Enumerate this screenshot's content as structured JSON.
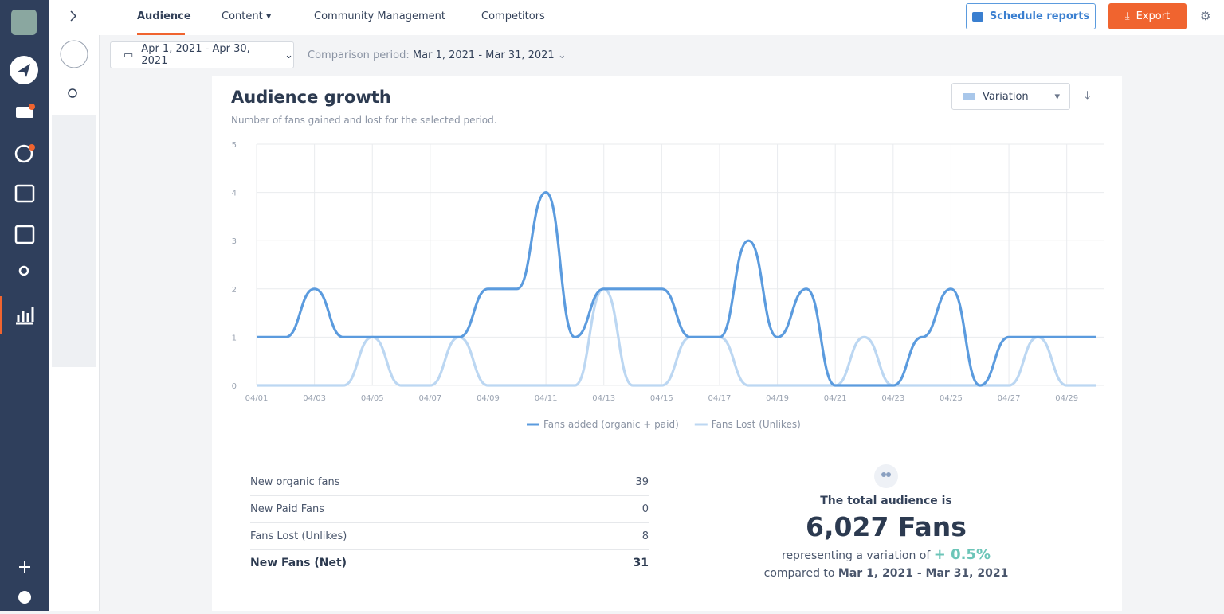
{
  "app": {
    "tabs": [
      "Audience",
      "Content",
      "Community Management",
      "Competitors"
    ],
    "schedule": "Schedule reports",
    "export": "Export"
  },
  "filters": {
    "date_range": "Apr 1, 2021 - Apr 30, 2021",
    "comparison_label": "Comparison period:",
    "comparison_range": "Mar 1, 2021 - Mar 31, 2021"
  },
  "card": {
    "view": "Variation"
  },
  "chart_data": {
    "type": "line",
    "title": "Audience growth",
    "subtitle": "Number of fans gained and lost for the selected period.",
    "categories": [
      "04/01",
      null,
      "04/03",
      null,
      "04/05",
      null,
      "04/07",
      null,
      "04/09",
      null,
      "04/11",
      null,
      "04/13",
      null,
      "04/15",
      null,
      "04/17",
      null,
      "04/19",
      null,
      "04/21",
      null,
      "04/23",
      null,
      "04/25",
      null,
      "04/27",
      null,
      "04/29",
      null
    ],
    "series": [
      {
        "name": "Fans added (organic + paid)",
        "color": "#5b9bde",
        "values": [
          1,
          1,
          2,
          1,
          1,
          1,
          1,
          1,
          2,
          2,
          4,
          1,
          2,
          2,
          2,
          1,
          1,
          3,
          1,
          2,
          0,
          0,
          0,
          1,
          2,
          0,
          1,
          1,
          1,
          1
        ]
      },
      {
        "name": "Fans Lost (Unlikes)",
        "color": "#bcd7f2",
        "values": [
          0,
          0,
          0,
          0,
          1,
          0,
          0,
          1,
          0,
          0,
          0,
          0,
          2,
          0,
          0,
          1,
          1,
          0,
          0,
          0,
          0,
          1,
          0,
          0,
          0,
          0,
          0,
          1,
          0,
          0
        ]
      }
    ],
    "ylim": [
      0,
      5
    ],
    "yticks": [
      0,
      1,
      2,
      3,
      4,
      5
    ],
    "grid": true,
    "legend": "bottom"
  },
  "stats": {
    "rows": [
      [
        "New organic fans",
        39
      ],
      [
        "New Paid Fans",
        0
      ],
      [
        "Fans Lost (Unlikes)",
        8
      ],
      [
        "New Fans (Net)",
        31
      ]
    ]
  },
  "summary": {
    "heading": "The total audience is",
    "total": "6,027 Fans",
    "variation_label": "representing a variation of",
    "variation": "+ 0.5%",
    "compared_label": "compared to",
    "compared_range": "Mar 1, 2021 - Mar 31, 2021"
  }
}
